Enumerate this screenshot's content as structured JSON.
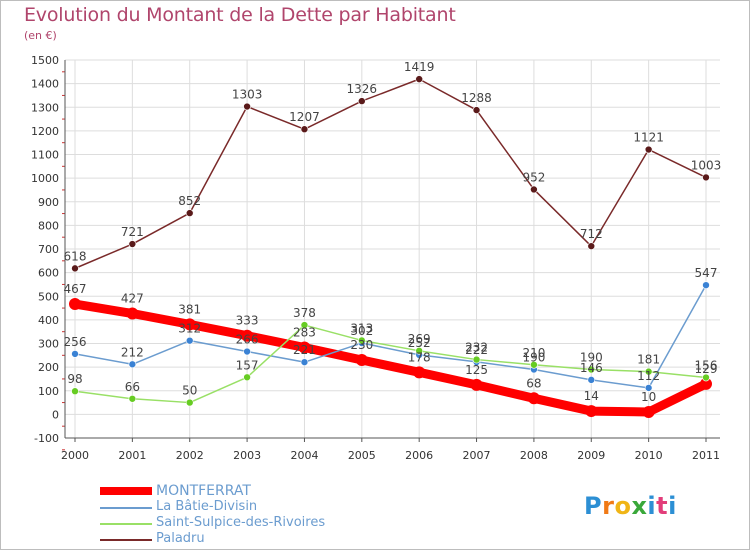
{
  "header": {
    "title": "Evolution du Montant de la Dette par Habitant",
    "subtitle": "(en €)"
  },
  "logo": {
    "text": "Proxiti",
    "letters": [
      "P",
      "r",
      "o",
      "x",
      "i",
      "t",
      "i"
    ]
  },
  "chart_data": {
    "type": "line",
    "title": "Evolution du Montant de la Dette par Habitant",
    "subtitle": "(en €)",
    "x": [
      "2000",
      "2001",
      "2002",
      "2003",
      "2004",
      "2005",
      "2006",
      "2007",
      "2008",
      "2009",
      "2010",
      "2011"
    ],
    "ylim": [
      -100,
      1500
    ],
    "yticks": [
      -100,
      0,
      100,
      200,
      300,
      400,
      500,
      600,
      700,
      800,
      900,
      1000,
      1100,
      1200,
      1300,
      1400,
      1500
    ],
    "grid": true,
    "legend_position": "bottom-left",
    "series": [
      {
        "name": "MONTFERRAT",
        "color": "#ff0000",
        "values": [
          467,
          427,
          381,
          333,
          283,
          230,
          178,
          125,
          68,
          14,
          10,
          129
        ],
        "labels": [
          "467",
          "427",
          "381",
          "333",
          "283",
          "230",
          "178",
          "125",
          "68",
          "14",
          "10",
          "129"
        ]
      },
      {
        "name": "La Bâtie-Divisin",
        "color": "#6b9ccf",
        "values": [
          256,
          212,
          312,
          266,
          221,
          302,
          252,
          222,
          190,
          146,
          112,
          547
        ],
        "labels": [
          "256",
          "212",
          "312",
          "266",
          "221",
          "302",
          "252",
          "222",
          "190",
          "146",
          "112",
          "547"
        ]
      },
      {
        "name": "Saint-Sulpice-des-Rivoires",
        "color": "#99e066",
        "values": [
          98,
          66,
          50,
          157,
          378,
          313,
          269,
          232,
          210,
          190,
          181,
          156
        ],
        "labels": [
          "98",
          "66",
          "50",
          "157",
          "378",
          "313",
          "269",
          "232",
          "210",
          "190",
          "181",
          "156"
        ]
      },
      {
        "name": "Paladru",
        "color": "#7a2a2a",
        "values": [
          618,
          721,
          852,
          1303,
          1207,
          1326,
          1419,
          1288,
          952,
          712,
          1121,
          1003
        ],
        "labels": [
          "618",
          "721",
          "852",
          "1303",
          "1207",
          "1326",
          "1419",
          "1288",
          "952",
          "712",
          "1121",
          "1003"
        ]
      }
    ]
  }
}
